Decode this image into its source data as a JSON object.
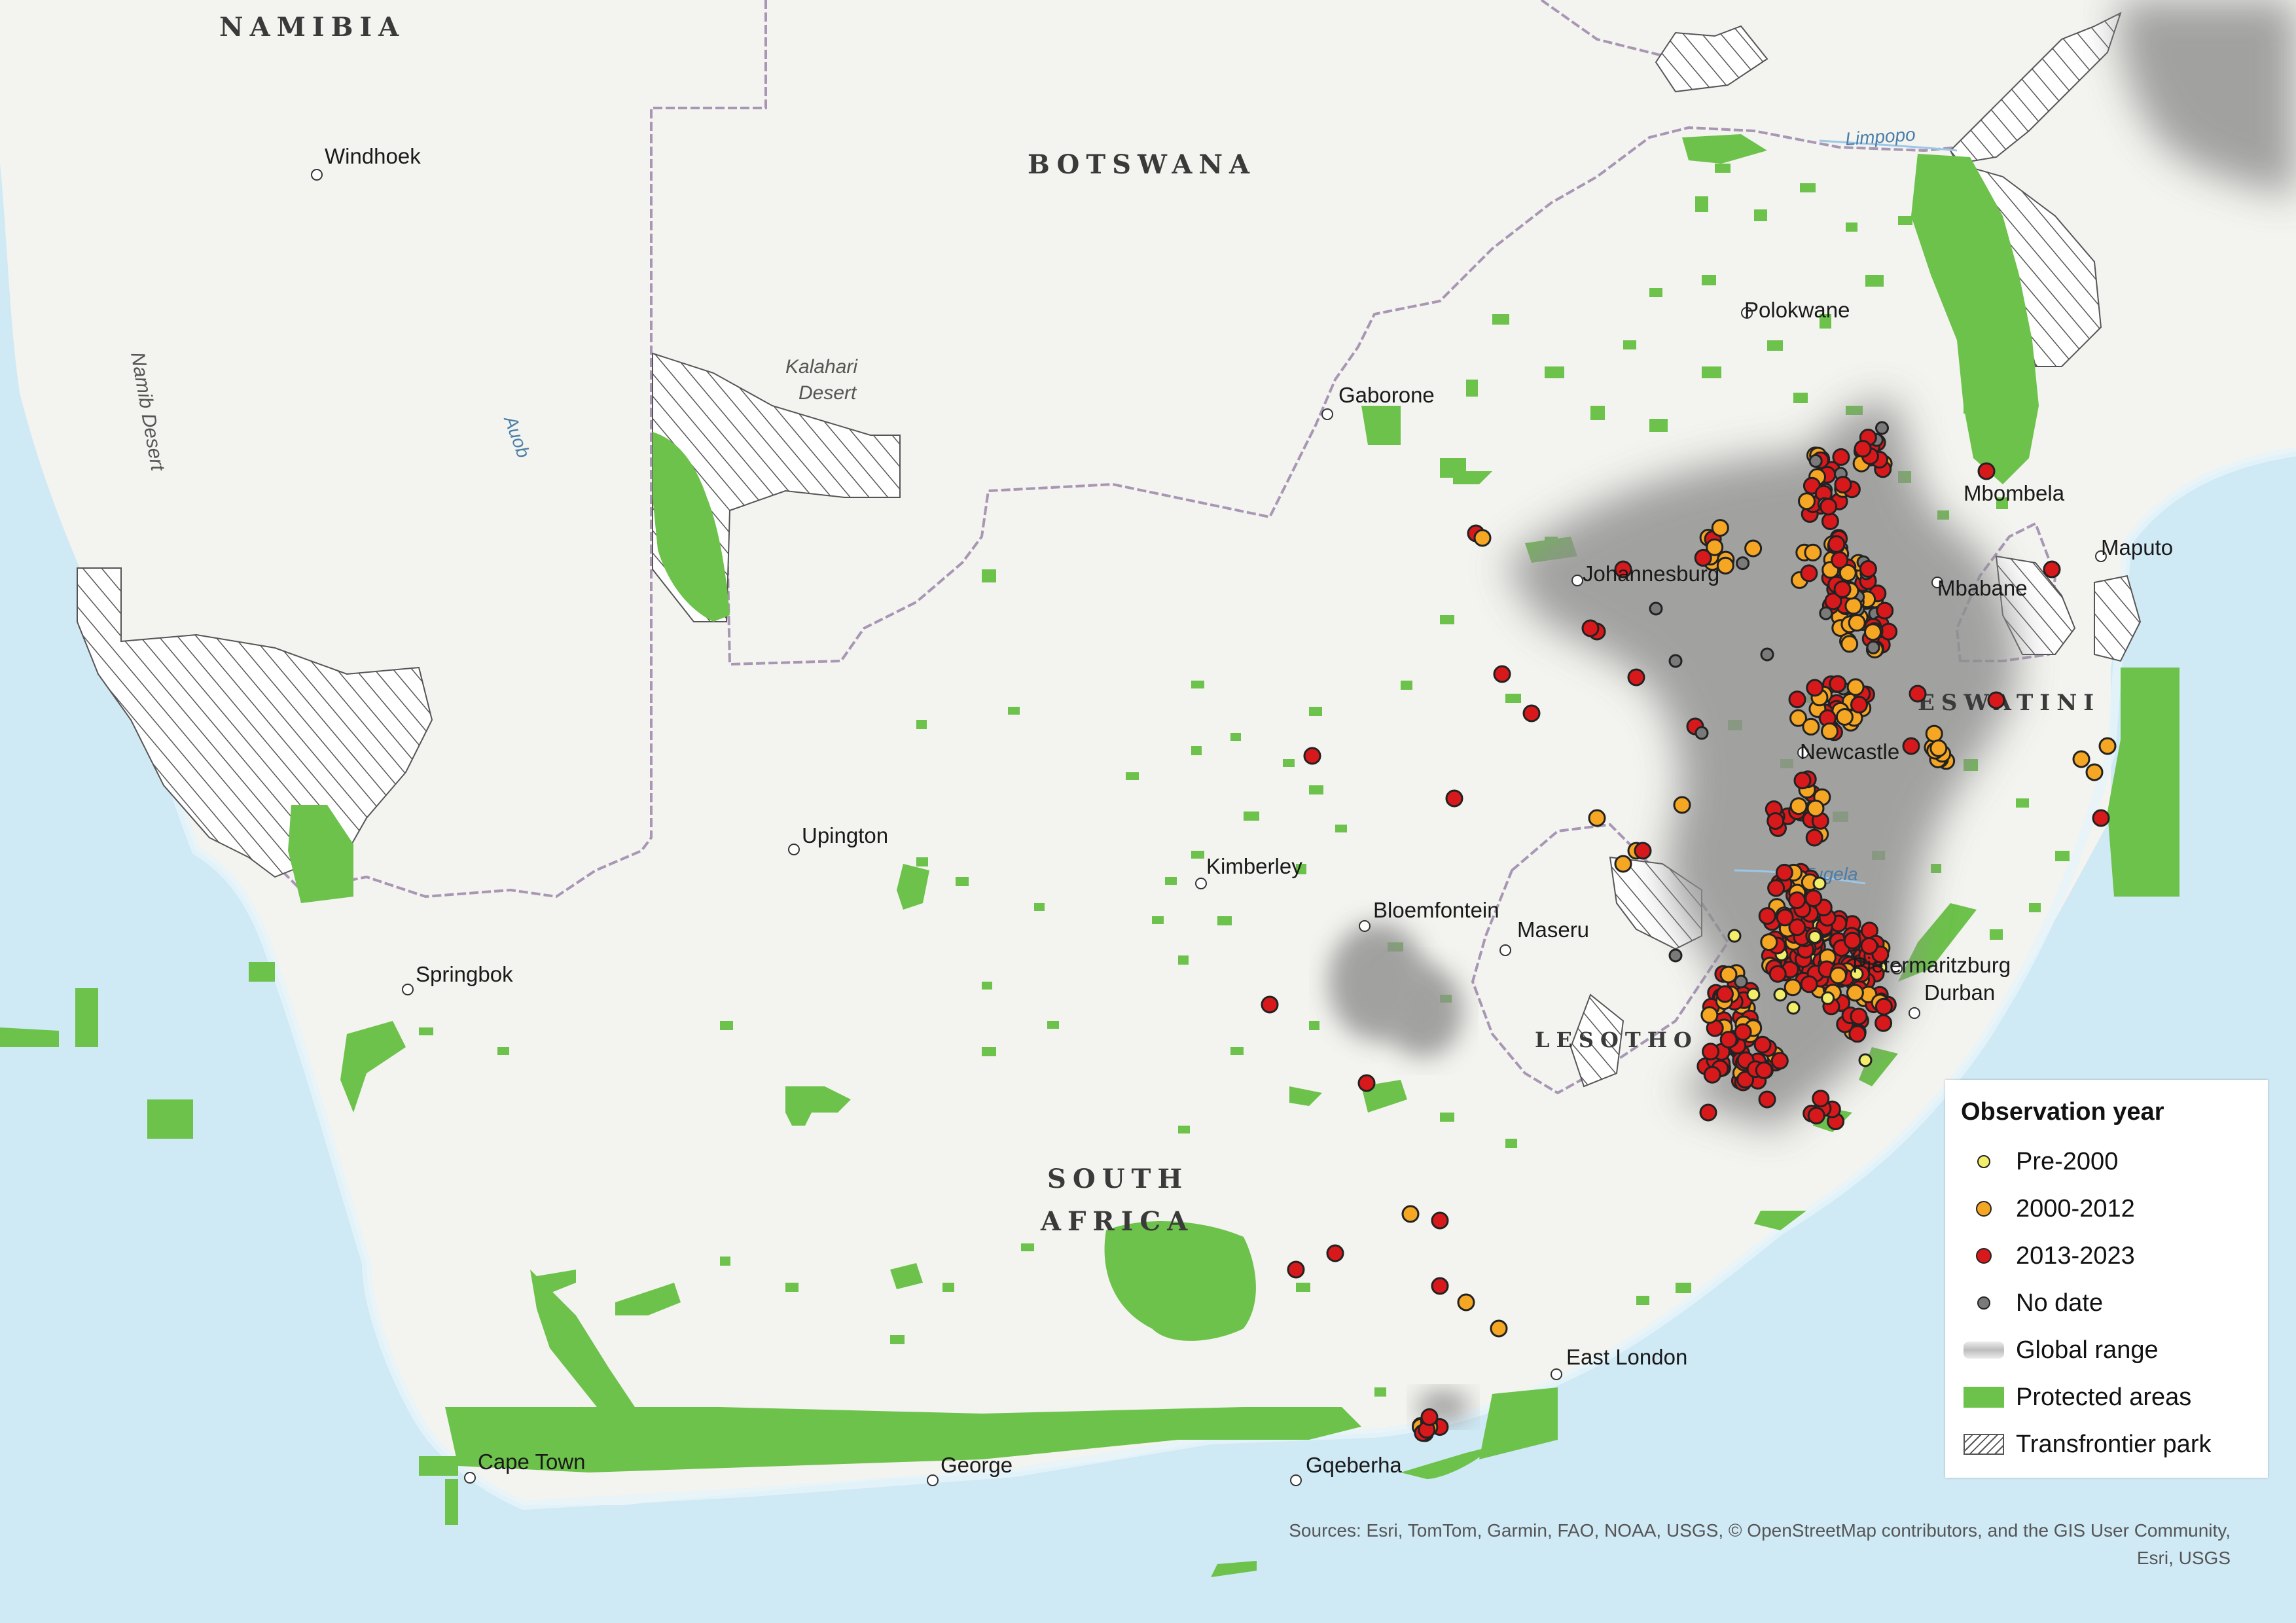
{
  "countries": {
    "namibia": "NAMIBIA",
    "botswana": "BOTSWANA",
    "eswatini": "ESWATINI",
    "lesotho": "LESOTHO",
    "south_africa_1": "SOUTH",
    "south_africa_2": "AFRICA"
  },
  "cities": {
    "windhoek": "Windhoek",
    "gaborone": "Gaborone",
    "polokwane": "Polokwane",
    "mbombela": "Mbombela",
    "maputo": "Maputo",
    "johannesburg": "Johannesburg",
    "mbabane": "Mbabane",
    "newcastle": "Newcastle",
    "upington": "Upington",
    "kimberley": "Kimberley",
    "bloemfontein": "Bloemfontein",
    "maseru": "Maseru",
    "pietermaritzburg": "Pietermaritzburg",
    "durban": "Durban",
    "springbok": "Springbok",
    "east_london": "East London",
    "cape_town": "Cape Town",
    "george": "George",
    "gqeberha": "Gqeberha"
  },
  "features": {
    "kalahari_1": "Kalahari",
    "kalahari_2": "Desert",
    "namib": "Namib Desert",
    "auob": "Auob",
    "limpopo": "Limpopo",
    "tugela": "Tugela"
  },
  "legend": {
    "title": "Observation year",
    "items": [
      {
        "label": "Pre-2000",
        "kind": "dot",
        "color": "#f2ee6a"
      },
      {
        "label": "2000-2012",
        "kind": "dot",
        "color": "#f5a623"
      },
      {
        "label": "2013-2023",
        "kind": "dot",
        "color": "#d7191c"
      },
      {
        "label": "No date",
        "kind": "dot",
        "color": "#7a7a7a"
      },
      {
        "label": "Global range",
        "kind": "range",
        "color": "#9e9e9e"
      },
      {
        "label": "Protected areas",
        "kind": "protected",
        "color": "#6cc24a"
      },
      {
        "label": "Transfrontier park",
        "kind": "hatch",
        "color": "#555555"
      }
    ]
  },
  "attribution": {
    "line1": "Sources: Esri, TomTom, Garmin, FAO, NOAA, USGS, © OpenStreetMap contributors, and the GIS User Community,",
    "line2": "Esri, USGS"
  },
  "colors": {
    "ocean": "#cfe9f5",
    "land": "#f3f3ef",
    "protected": "#6cc24a",
    "range": "#8f8f8f"
  }
}
